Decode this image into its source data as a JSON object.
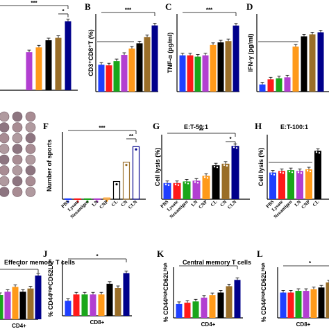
{
  "palette": [
    "#1f3fff",
    "#ff1a1a",
    "#1aa61a",
    "#b23fd1",
    "#ff9a1a",
    "#000000",
    "#9a6e28",
    "#00008b"
  ],
  "plate_colors": [
    "#b09a9f",
    "#8d7580",
    "#a88c93"
  ],
  "chart_data": [
    {
      "id": "A",
      "type": "bar",
      "panel_label": "",
      "ylabel": "",
      "values": [
        0,
        0,
        0,
        16,
        18,
        21,
        22,
        29
      ],
      "ylim": [
        0,
        35
      ],
      "annotations": [
        "***",
        "*"
      ]
    },
    {
      "id": "B",
      "type": "bar",
      "panel_label": "B",
      "ylabel": "CD3⁺CD8⁺T (%)",
      "values": [
        12.8,
        12.5,
        14.5,
        17.5,
        20.5,
        23,
        26,
        31.5
      ],
      "ylim": [
        0,
        37
      ],
      "annotations": [
        "***"
      ]
    },
    {
      "id": "C",
      "type": "bar",
      "panel_label": "C",
      "ylabel": "TNF-α (pg/ml)",
      "values": [
        14,
        14,
        13.5,
        14,
        18,
        19,
        19.5,
        25.5
      ],
      "ylim": [
        0,
        30
      ],
      "annotations": [
        "***"
      ]
    },
    {
      "id": "D",
      "type": "bar",
      "panel_label": "D",
      "ylabel": "IFN-γ (pg/ml)",
      "values": [
        35,
        60,
        65,
        70,
        220,
        270,
        280,
        290
      ],
      "ylim": [
        0,
        380
      ],
      "annotations": []
    },
    {
      "id": "F",
      "type": "scatter",
      "panel_label": "F",
      "ylabel": "Number of sports",
      "categories": [
        "PBS",
        "Lysate",
        "Neoantigen",
        "LN",
        "CNP",
        "CL",
        "CN",
        "CLN"
      ],
      "values": [
        10,
        10,
        10,
        10,
        30,
        420,
        880,
        1250
      ],
      "ylim": [
        0,
        1600
      ],
      "annotations": [
        "***",
        "**"
      ]
    },
    {
      "id": "G",
      "type": "bar",
      "panel_label": "G",
      "title": "E:T-50:1",
      "ylabel": "Cell lysis (%)",
      "categories": [
        "PBS",
        "Lysate",
        "Neoantigen",
        "LN",
        "CNP",
        "CL",
        "CN",
        "CLN"
      ],
      "values": [
        20,
        20,
        22,
        23,
        29,
        42,
        44,
        66
      ],
      "ylim": [
        0,
        80
      ],
      "annotations": [
        "**",
        "*"
      ]
    },
    {
      "id": "H",
      "type": "bar",
      "panel_label": "H",
      "title": "E:T-100:1",
      "ylabel": "Cell lysis (%)",
      "categories": [
        "PBS",
        "Lysate",
        "Neoantigen",
        "LN",
        "CNP",
        "CL"
      ],
      "values": [
        33,
        35,
        36,
        35,
        37,
        60
      ],
      "ylim": [
        0,
        80
      ],
      "annotations": []
    },
    {
      "id": "I",
      "type": "bar",
      "panel_label": "",
      "title": "Effector memory T cells",
      "ylabel": "",
      "xlabel": "CD4+",
      "values": [
        18,
        17,
        15,
        17,
        20,
        17,
        19,
        27
      ],
      "ylim": [
        0,
        30
      ],
      "annotations": [
        "*"
      ]
    },
    {
      "id": "J",
      "type": "bar",
      "panel_label": "J",
      "ylabel": "% CD44ʰⁱᵍʰCD62Lˡᵒʷ",
      "xlabel": "CD8+",
      "values": [
        7,
        10,
        10,
        10,
        10,
        15,
        13,
        20
      ],
      "ylim": [
        0,
        26
      ],
      "annotations": [
        "*"
      ]
    },
    {
      "id": "K",
      "type": "bar",
      "panel_label": "K",
      "title": "Central memory T cells",
      "ylabel": "% CD44ʰⁱᵍʰCD62Lʰⁱᵍʰ",
      "xlabel": "CD4+",
      "values": [
        5.5,
        6,
        6.5,
        8,
        9,
        10,
        12.5,
        15
      ],
      "ylim": [
        0,
        20
      ],
      "annotations": [
        "*"
      ]
    },
    {
      "id": "L",
      "type": "bar",
      "panel_label": "L",
      "ylabel": "% CD44ʰⁱᵍʰCD62Lʰⁱᵍʰ",
      "xlabel": "CD8+",
      "values": [
        15,
        15,
        16,
        16,
        17,
        18,
        21,
        22
      ],
      "ylim": [
        0,
        30
      ],
      "annotations": [
        "*"
      ]
    }
  ]
}
